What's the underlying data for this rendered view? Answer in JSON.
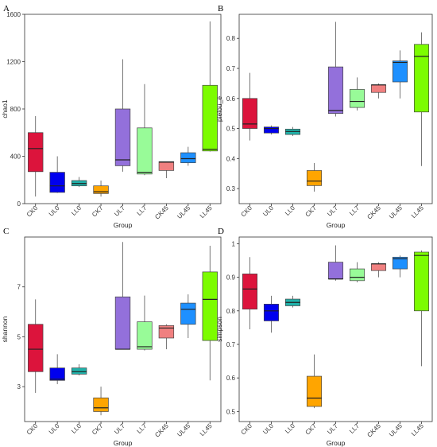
{
  "chart_data": [
    {
      "type": "box",
      "panel_label": "A",
      "xlabel": "Group",
      "ylabel": "chao1",
      "ylim": [
        0,
        1600
      ],
      "yticks": [
        0,
        400,
        800,
        1200,
        1600
      ],
      "grid": false,
      "categories": [
        "CK0",
        "UL0",
        "LL0",
        "CK7",
        "UL7",
        "LL7",
        "CK45",
        "UL45",
        "LL45"
      ],
      "colors": [
        "#dc143c",
        "#0000ee",
        "#20b2aa",
        "#ffa500",
        "#9370db",
        "#98fb98",
        "#f08080",
        "#1e90ff",
        "#7cfc00"
      ],
      "boxes": [
        {
          "min": 60,
          "q1": 270,
          "median": 465,
          "q3": 600,
          "max": 740
        },
        {
          "min": 90,
          "q1": 95,
          "median": 150,
          "q3": 265,
          "max": 400
        },
        {
          "min": 140,
          "q1": 150,
          "median": 170,
          "q3": 195,
          "max": 225
        },
        {
          "min": 60,
          "q1": 85,
          "median": 100,
          "q3": 150,
          "max": 195
        },
        {
          "min": 270,
          "q1": 320,
          "median": 370,
          "q3": 800,
          "max": 1220
        },
        {
          "min": 240,
          "q1": 250,
          "median": 265,
          "q3": 640,
          "max": 1010
        },
        {
          "min": 215,
          "q1": 280,
          "median": 350,
          "q3": 355,
          "max": 355
        },
        {
          "min": 320,
          "q1": 345,
          "median": 380,
          "q3": 430,
          "max": 480
        },
        {
          "min": 440,
          "q1": 445,
          "median": 460,
          "q3": 1000,
          "max": 1540
        }
      ]
    },
    {
      "type": "box",
      "panel_label": "B",
      "xlabel": "Group",
      "ylabel": "pielou_e",
      "ylim": [
        0.25,
        0.88
      ],
      "yticks": [
        0.3,
        0.4,
        0.5,
        0.6,
        0.7,
        0.8
      ],
      "grid": false,
      "categories": [
        "CK0",
        "UL0",
        "LL0",
        "CK7",
        "UL7",
        "LL7",
        "CK45",
        "UL45",
        "LL45"
      ],
      "colors": [
        "#dc143c",
        "#0000ee",
        "#20b2aa",
        "#ffa500",
        "#9370db",
        "#98fb98",
        "#f08080",
        "#1e90ff",
        "#7cfc00"
      ],
      "boxes": [
        {
          "min": 0.46,
          "q1": 0.5,
          "median": 0.515,
          "q3": 0.6,
          "max": 0.685
        },
        {
          "min": 0.48,
          "q1": 0.485,
          "median": 0.5,
          "q3": 0.505,
          "max": 0.51
        },
        {
          "min": 0.475,
          "q1": 0.48,
          "median": 0.49,
          "q3": 0.498,
          "max": 0.505
        },
        {
          "min": 0.29,
          "q1": 0.31,
          "median": 0.325,
          "q3": 0.36,
          "max": 0.385
        },
        {
          "min": 0.54,
          "q1": 0.55,
          "median": 0.56,
          "q3": 0.705,
          "max": 0.855
        },
        {
          "min": 0.56,
          "q1": 0.57,
          "median": 0.59,
          "q3": 0.63,
          "max": 0.67
        },
        {
          "min": 0.6,
          "q1": 0.62,
          "median": 0.645,
          "q3": 0.645,
          "max": 0.65
        },
        {
          "min": 0.6,
          "q1": 0.655,
          "median": 0.72,
          "q3": 0.725,
          "max": 0.76
        },
        {
          "min": 0.375,
          "q1": 0.555,
          "median": 0.74,
          "q3": 0.78,
          "max": 0.82
        }
      ]
    },
    {
      "type": "box",
      "panel_label": "C",
      "xlabel": "Group",
      "ylabel": "shannon",
      "ylim": [
        1.6,
        9.0
      ],
      "yticks": [
        3,
        5,
        7
      ],
      "grid": false,
      "categories": [
        "CK0",
        "UL0",
        "LL0",
        "CK7",
        "UL7",
        "LL7",
        "CK45",
        "UL45",
        "LL45"
      ],
      "colors": [
        "#dc143c",
        "#0000ee",
        "#20b2aa",
        "#ffa500",
        "#9370db",
        "#98fb98",
        "#f08080",
        "#1e90ff",
        "#7cfc00"
      ],
      "boxes": [
        {
          "min": 2.75,
          "q1": 3.6,
          "median": 4.5,
          "q3": 5.5,
          "max": 6.5
        },
        {
          "min": 3.1,
          "q1": 3.25,
          "median": 3.3,
          "q3": 3.75,
          "max": 4.3
        },
        {
          "min": 3.45,
          "q1": 3.5,
          "median": 3.6,
          "q3": 3.75,
          "max": 3.9
        },
        {
          "min": 1.85,
          "q1": 2.0,
          "median": 2.15,
          "q3": 2.55,
          "max": 3.0
        },
        {
          "min": 4.5,
          "q1": 4.5,
          "median": 4.5,
          "q3": 6.6,
          "max": 8.8
        },
        {
          "min": 4.45,
          "q1": 4.5,
          "median": 4.6,
          "q3": 5.6,
          "max": 6.65
        },
        {
          "min": 4.5,
          "q1": 4.95,
          "median": 5.35,
          "q3": 5.45,
          "max": 5.5
        },
        {
          "min": 4.95,
          "q1": 5.5,
          "median": 6.1,
          "q3": 6.35,
          "max": 6.7
        },
        {
          "min": 3.25,
          "q1": 4.85,
          "median": 6.5,
          "q3": 7.6,
          "max": 8.65
        }
      ]
    },
    {
      "type": "box",
      "panel_label": "D",
      "xlabel": "Group",
      "ylabel": "simpson",
      "ylim": [
        0.47,
        1.02
      ],
      "yticks": [
        0.5,
        0.6,
        0.7,
        0.8,
        0.9,
        1.0
      ],
      "grid": false,
      "categories": [
        "CK0",
        "UL0",
        "LL0",
        "CK7",
        "UL7",
        "LL7",
        "CK45",
        "UL45",
        "LL45"
      ],
      "colors": [
        "#dc143c",
        "#0000ee",
        "#20b2aa",
        "#ffa500",
        "#9370db",
        "#98fb98",
        "#f08080",
        "#1e90ff",
        "#7cfc00"
      ],
      "boxes": [
        {
          "min": 0.745,
          "q1": 0.805,
          "median": 0.865,
          "q3": 0.91,
          "max": 0.96
        },
        {
          "min": 0.735,
          "q1": 0.77,
          "median": 0.8,
          "q3": 0.82,
          "max": 0.845
        },
        {
          "min": 0.81,
          "q1": 0.815,
          "median": 0.825,
          "q3": 0.835,
          "max": 0.845
        },
        {
          "min": 0.51,
          "q1": 0.515,
          "median": 0.54,
          "q3": 0.605,
          "max": 0.67
        },
        {
          "min": 0.89,
          "q1": 0.895,
          "median": 0.895,
          "q3": 0.945,
          "max": 0.995
        },
        {
          "min": 0.885,
          "q1": 0.89,
          "median": 0.9,
          "q3": 0.925,
          "max": 0.945
        },
        {
          "min": 0.9,
          "q1": 0.92,
          "median": 0.94,
          "q3": 0.94,
          "max": 0.945
        },
        {
          "min": 0.9,
          "q1": 0.925,
          "median": 0.955,
          "q3": 0.96,
          "max": 0.965
        },
        {
          "min": 0.635,
          "q1": 0.8,
          "median": 0.965,
          "q3": 0.975,
          "max": 0.98
        }
      ]
    }
  ]
}
